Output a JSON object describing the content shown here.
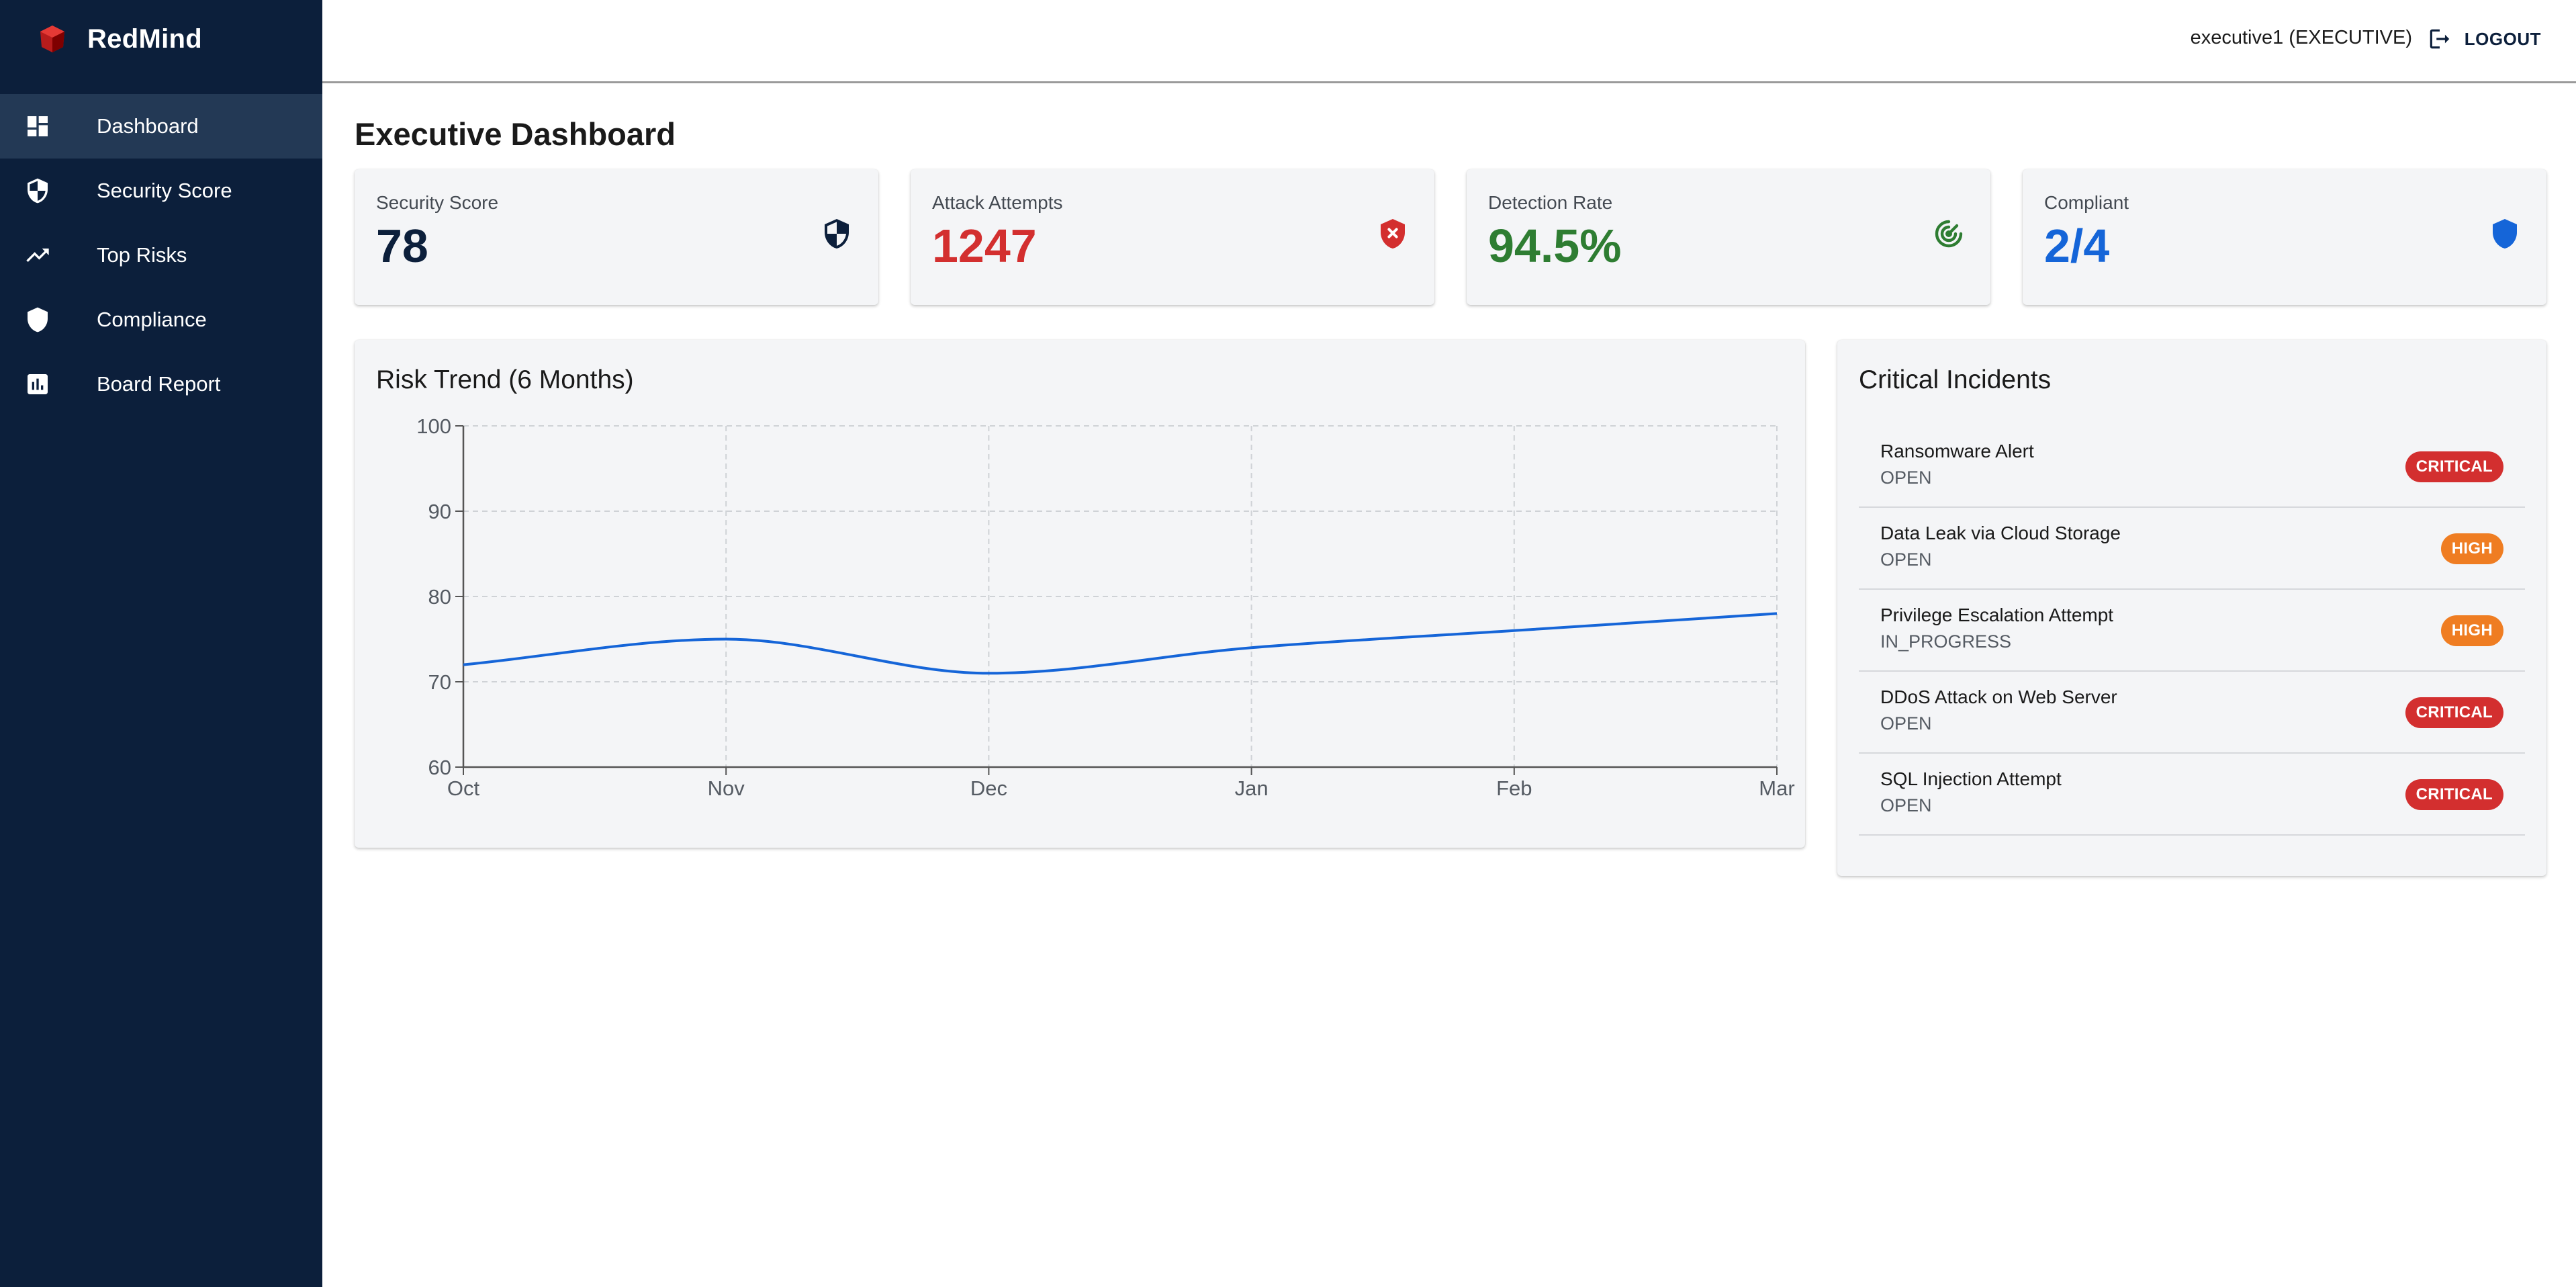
{
  "brand": {
    "name": "RedMind"
  },
  "sidebar": {
    "items": [
      {
        "label": "Dashboard",
        "icon": "dashboard-icon",
        "active": true
      },
      {
        "label": "Security Score",
        "icon": "security-shield-icon",
        "active": false
      },
      {
        "label": "Top Risks",
        "icon": "trending-up-icon",
        "active": false
      },
      {
        "label": "Compliance",
        "icon": "shield-icon",
        "active": false
      },
      {
        "label": "Board Report",
        "icon": "bar-chart-icon",
        "active": false
      }
    ]
  },
  "header": {
    "user": "executive1 (EXECUTIVE)",
    "logout_label": "LOGOUT"
  },
  "page": {
    "title": "Executive Dashboard"
  },
  "stats": [
    {
      "label": "Security Score",
      "value": "78",
      "color": "#0c1f3b",
      "icon": "security-shield-icon"
    },
    {
      "label": "Attack Attempts",
      "value": "1247",
      "color": "#d32f2f",
      "icon": "shield-x-icon"
    },
    {
      "label": "Detection Rate",
      "value": "94.5%",
      "color": "#2e7d32",
      "icon": "radar-icon"
    },
    {
      "label": "Compliant",
      "value": "2/4",
      "color": "#1565d8",
      "icon": "shield-icon"
    }
  ],
  "chart_data": {
    "type": "line",
    "title": "Risk Trend (6 Months)",
    "categories": [
      "Oct",
      "Nov",
      "Dec",
      "Jan",
      "Feb",
      "Mar"
    ],
    "series": [
      {
        "values": [
          72,
          75,
          71,
          74,
          76,
          78
        ],
        "color": "#1565d8"
      }
    ],
    "yticks": [
      60,
      70,
      80,
      90,
      100
    ],
    "ylim": [
      60,
      100
    ],
    "grid": true,
    "xlabel": "",
    "ylabel": ""
  },
  "incidents": {
    "title": "Critical Incidents",
    "items": [
      {
        "title": "Ransomware Alert",
        "status": "OPEN",
        "severity": "CRITICAL"
      },
      {
        "title": "Data Leak via Cloud Storage",
        "status": "OPEN",
        "severity": "HIGH"
      },
      {
        "title": "Privilege Escalation Attempt",
        "status": "IN_PROGRESS",
        "severity": "HIGH"
      },
      {
        "title": "DDoS Attack on Web Server",
        "status": "OPEN",
        "severity": "CRITICAL"
      },
      {
        "title": "SQL Injection Attempt",
        "status": "OPEN",
        "severity": "CRITICAL"
      }
    ]
  },
  "severity_colors": {
    "CRITICAL": "#d32f2f",
    "HIGH": "#ef7d22"
  }
}
